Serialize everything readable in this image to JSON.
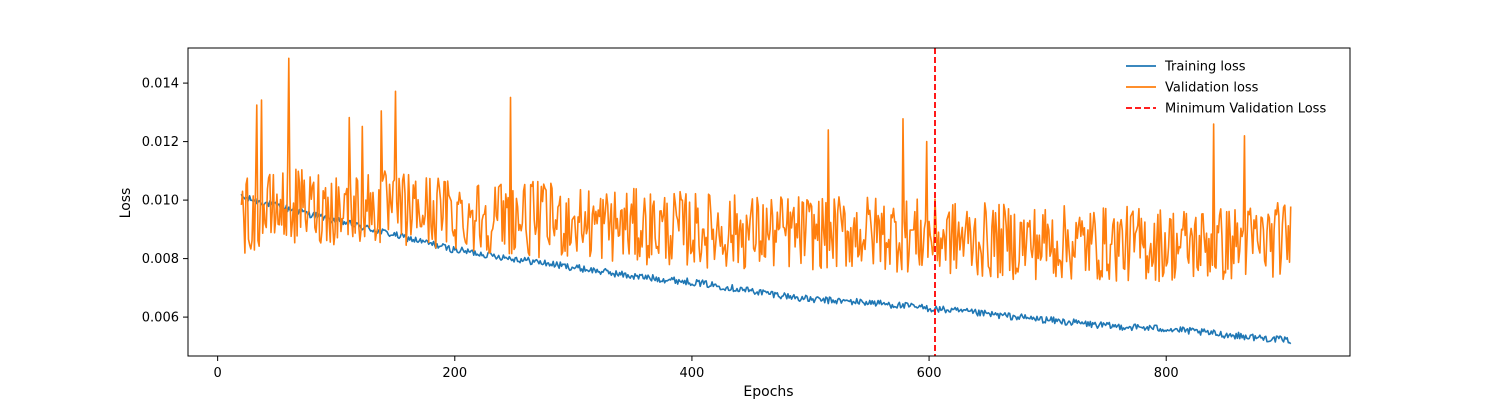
{
  "chart_data": {
    "type": "line",
    "title": "",
    "xlabel": "Epochs",
    "ylabel": "Loss",
    "xlim": [
      -25,
      955
    ],
    "ylim": [
      0.00467,
      0.0152
    ],
    "x_ticks": [
      0,
      200,
      400,
      600,
      800
    ],
    "y_ticks": [
      0.006,
      0.008,
      0.01,
      0.012,
      0.014
    ],
    "y_tick_labels": [
      "0.006",
      "0.008",
      "0.010",
      "0.012",
      "0.014"
    ],
    "grid": false,
    "legend_position": "top-right",
    "epoch_start": 20,
    "epoch_end": 905,
    "series": [
      {
        "name": "Training loss",
        "color": "#1f77b4",
        "style": "solid",
        "anchors": [
          [
            20,
            0.0101
          ],
          [
            60,
            0.0097
          ],
          [
            100,
            0.0093
          ],
          [
            150,
            0.0088
          ],
          [
            200,
            0.0083
          ],
          [
            250,
            0.008
          ],
          [
            300,
            0.0077
          ],
          [
            350,
            0.0074
          ],
          [
            400,
            0.0072
          ],
          [
            450,
            0.0069
          ],
          [
            500,
            0.0066
          ],
          [
            550,
            0.0065
          ],
          [
            600,
            0.0063
          ],
          [
            650,
            0.0061
          ],
          [
            700,
            0.0059
          ],
          [
            750,
            0.0057
          ],
          [
            800,
            0.0056
          ],
          [
            850,
            0.0054
          ],
          [
            905,
            0.0052
          ]
        ],
        "noise": 0.00012
      },
      {
        "name": "Validation loss",
        "color": "#ff7f0e",
        "style": "solid",
        "anchors": [
          [
            20,
            0.0094
          ],
          [
            60,
            0.0098
          ],
          [
            150,
            0.0097
          ],
          [
            250,
            0.0094
          ],
          [
            350,
            0.0091
          ],
          [
            450,
            0.0089
          ],
          [
            550,
            0.0089
          ],
          [
            650,
            0.0086
          ],
          [
            750,
            0.0085
          ],
          [
            850,
            0.0085
          ],
          [
            905,
            0.0087
          ]
        ],
        "noise": 0.0013,
        "peaks": [
          [
            60,
            0.01485
          ],
          [
            33,
            0.01325
          ],
          [
            37,
            0.01342
          ],
          [
            150,
            0.01372
          ],
          [
            247,
            0.01351
          ],
          [
            138,
            0.01305
          ],
          [
            578,
            0.01278
          ],
          [
            840,
            0.0126
          ],
          [
            111,
            0.01282
          ],
          [
            122,
            0.01252
          ],
          [
            515,
            0.0124
          ],
          [
            598,
            0.012
          ],
          [
            866,
            0.0122
          ]
        ]
      },
      {
        "name": "Minimum Validation Loss",
        "color": "#ff0000",
        "style": "dashed",
        "x": 605
      }
    ]
  }
}
